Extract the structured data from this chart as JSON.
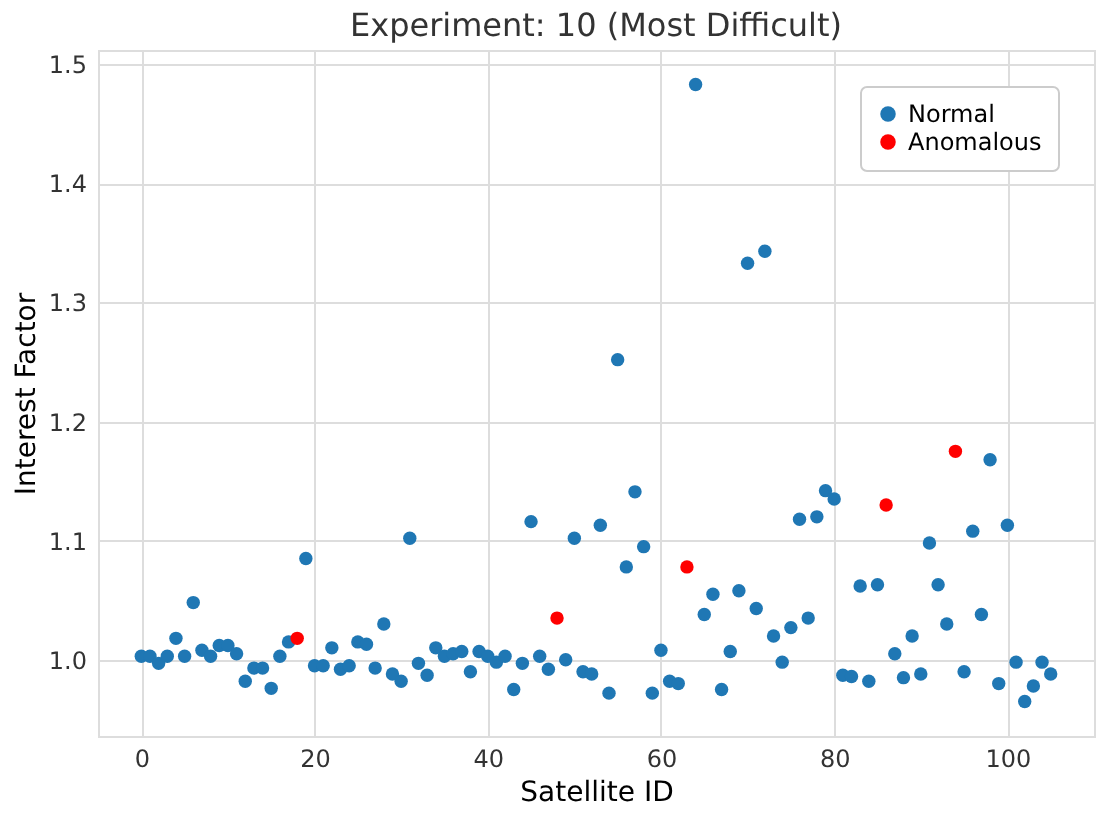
{
  "chart_data": {
    "type": "scatter",
    "title": "Experiment: 10 (Most Difficult)",
    "xlabel": "Satellite ID",
    "ylabel": "Interest Factor",
    "xlim": [
      -5,
      110
    ],
    "xticks": [
      0,
      20,
      40,
      60,
      80,
      100
    ],
    "ylim": [
      0.936,
      1.512
    ],
    "yticks": [
      {
        "value": 1.0,
        "label": "1.0"
      },
      1.1,
      1.2,
      1.3,
      1.4,
      1.5
    ],
    "grid": true,
    "legend": "top right",
    "marker": "circle",
    "series": [
      {
        "name": "Normal",
        "color": "#1f77b4",
        "x": [
          0,
          1,
          2,
          3,
          4,
          5,
          6,
          7,
          8,
          9,
          10,
          11,
          12,
          13,
          14,
          15,
          16,
          17,
          19,
          20,
          21,
          22,
          23,
          24,
          25,
          26,
          27,
          28,
          29,
          30,
          31,
          32,
          33,
          34,
          35,
          36,
          37,
          38,
          39,
          40,
          41,
          42,
          43,
          44,
          45,
          46,
          47,
          49,
          50,
          51,
          52,
          53,
          54,
          55,
          56,
          57,
          58,
          59,
          60,
          61,
          62,
          64,
          65,
          66,
          67,
          68,
          69,
          70,
          71,
          72,
          73,
          74,
          75,
          76,
          77,
          78,
          79,
          80,
          81,
          82,
          83,
          84,
          85,
          87,
          88,
          89,
          90,
          91,
          92,
          93,
          95,
          96,
          97,
          98,
          99,
          100,
          101,
          102,
          103,
          104,
          105
        ],
        "values": [
          1.003,
          1.003,
          0.997,
          1.003,
          1.018,
          1.003,
          1.048,
          1.008,
          1.003,
          1.012,
          1.012,
          1.005,
          0.982,
          0.993,
          0.993,
          0.976,
          1.003,
          1.015,
          1.085,
          0.995,
          0.995,
          1.01,
          0.992,
          0.995,
          1.015,
          1.013,
          0.993,
          1.03,
          0.988,
          0.982,
          1.102,
          0.997,
          0.987,
          1.01,
          1.003,
          1.005,
          1.007,
          0.99,
          1.007,
          1.003,
          0.998,
          1.003,
          0.975,
          0.997,
          1.116,
          1.003,
          0.992,
          1.0,
          1.102,
          0.99,
          0.988,
          1.113,
          0.972,
          1.252,
          1.078,
          1.141,
          1.095,
          0.972,
          1.008,
          0.982,
          0.98,
          1.483,
          1.038,
          1.055,
          0.975,
          1.007,
          1.058,
          1.333,
          1.043,
          1.343,
          1.02,
          0.998,
          1.027,
          1.118,
          1.035,
          1.12,
          1.142,
          1.135,
          0.987,
          0.986,
          1.062,
          0.982,
          1.063,
          1.005,
          0.985,
          1.02,
          0.988,
          1.098,
          1.063,
          1.03,
          0.99,
          1.108,
          1.038,
          1.168,
          0.98,
          1.113,
          0.998,
          0.965,
          0.978,
          0.998,
          0.988
        ]
      },
      {
        "name": "Anomalous",
        "color": "#ff0000",
        "x": [
          18,
          48,
          63,
          86,
          94
        ],
        "values": [
          1.018,
          1.035,
          1.078,
          1.13,
          1.175
        ]
      }
    ]
  }
}
